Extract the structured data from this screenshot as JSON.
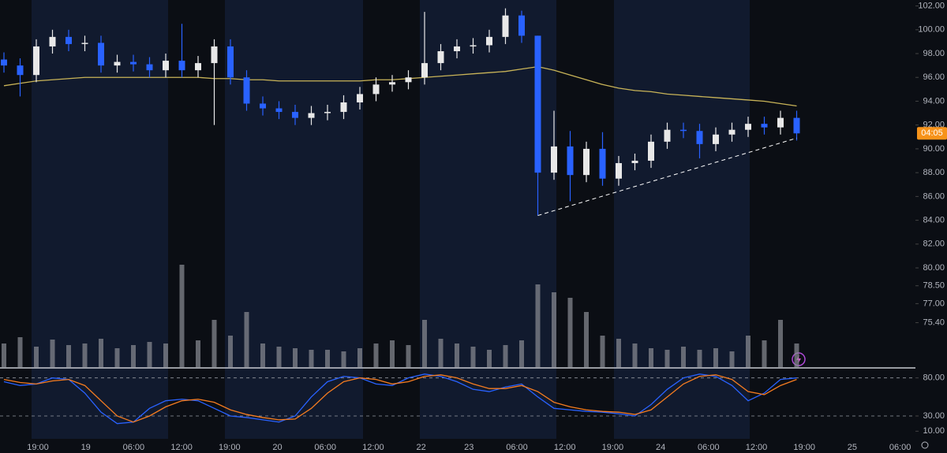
{
  "chart_data": {
    "type": "candlestick",
    "open": [
      97.5,
      97.0,
      96.2,
      98.6,
      99.4,
      98.8,
      98.9,
      97.0,
      97.3,
      97.1,
      96.6,
      97.4,
      96.6,
      97.2,
      98.6,
      96.0,
      93.8,
      93.4,
      93.1,
      92.6,
      93.0,
      93.1,
      93.9,
      94.6,
      95.4,
      95.6,
      96.0,
      97.2,
      98.2,
      98.6,
      98.7,
      99.4,
      101.2,
      99.5,
      88.0,
      90.2,
      87.8,
      90.0,
      87.5,
      88.8,
      89.0,
      90.6,
      91.6,
      91.5,
      90.4,
      91.2,
      91.6,
      92.1,
      91.8,
      92.6
    ],
    "high": [
      98.1,
      97.6,
      99.2,
      100.0,
      100.0,
      99.5,
      99.5,
      97.9,
      97.9,
      97.7,
      98.0,
      100.5,
      97.8,
      99.2,
      99.2,
      96.6,
      94.4,
      94.0,
      93.7,
      93.6,
      93.7,
      94.5,
      95.2,
      96.0,
      96.2,
      96.6,
      101.5,
      98.8,
      99.2,
      99.3,
      100.0,
      101.8,
      101.6,
      99.5,
      93.2,
      91.5,
      90.6,
      91.4,
      89.4,
      89.6,
      91.2,
      92.2,
      92.2,
      92.1,
      91.8,
      92.2,
      92.7,
      92.7,
      93.2,
      93.2
    ],
    "low": [
      96.4,
      94.4,
      95.6,
      98.0,
      98.2,
      98.2,
      96.4,
      96.4,
      96.5,
      96.0,
      96.0,
      96.0,
      96.0,
      92.0,
      95.4,
      93.2,
      92.8,
      92.5,
      92.0,
      92.0,
      92.4,
      92.5,
      93.3,
      94.0,
      94.8,
      95.0,
      95.4,
      96.6,
      97.6,
      98.0,
      98.1,
      98.8,
      98.9,
      84.4,
      87.4,
      85.6,
      87.2,
      86.9,
      86.9,
      88.2,
      88.4,
      90.0,
      90.9,
      89.2,
      89.8,
      90.6,
      91.0,
      91.2,
      91.2,
      90.7
    ],
    "close": [
      97.0,
      96.2,
      98.6,
      99.4,
      98.8,
      98.9,
      97.0,
      97.3,
      97.1,
      96.6,
      97.4,
      96.6,
      97.2,
      98.6,
      96.0,
      93.8,
      93.4,
      93.1,
      92.6,
      93.0,
      93.1,
      93.9,
      94.6,
      95.4,
      95.6,
      96.0,
      97.2,
      98.2,
      98.6,
      98.7,
      99.4,
      101.2,
      99.5,
      88.0,
      90.2,
      87.8,
      90.0,
      87.5,
      88.8,
      89.0,
      90.6,
      91.6,
      91.5,
      90.4,
      91.2,
      91.6,
      92.1,
      91.8,
      92.6,
      91.3
    ],
    "up_color": "#e8e8e8",
    "down_color": "#2962ff",
    "moving_average": {
      "color": "#c9b458",
      "values": [
        95.3,
        95.5,
        95.7,
        95.8,
        95.9,
        96.0,
        96.0,
        96.0,
        96.0,
        96.0,
        96.0,
        96.0,
        96.0,
        95.9,
        95.9,
        95.8,
        95.8,
        95.7,
        95.7,
        95.7,
        95.7,
        95.7,
        95.7,
        95.8,
        95.8,
        95.9,
        96.0,
        96.1,
        96.2,
        96.3,
        96.4,
        96.5,
        96.7,
        96.9,
        96.6,
        96.2,
        95.8,
        95.4,
        95.1,
        94.9,
        94.8,
        94.6,
        94.5,
        94.4,
        94.3,
        94.2,
        94.1,
        94.0,
        93.8,
        93.6
      ]
    },
    "trendline": {
      "from_index": 33,
      "to_index": 49,
      "values": [
        84.4,
        90.9
      ]
    },
    "volume": {
      "color": "#8a8d94",
      "ylim": [
        0,
        140
      ],
      "values": [
        30,
        38,
        26,
        35,
        28,
        30,
        36,
        24,
        28,
        32,
        30,
        130,
        34,
        60,
        40,
        70,
        30,
        26,
        24,
        22,
        22,
        20,
        24,
        30,
        34,
        28,
        60,
        36,
        30,
        26,
        22,
        28,
        34,
        105,
        95,
        88,
        70,
        40,
        36,
        30,
        24,
        22,
        26,
        22,
        24,
        20,
        40,
        34,
        60,
        30
      ]
    },
    "ylim": [
      71.6,
      102.5
    ],
    "yticks": [
      {
        "value": 102,
        "label": "102.00"
      },
      {
        "value": 100,
        "label": "100.00"
      },
      {
        "value": 98,
        "label": "98.00"
      },
      {
        "value": 96,
        "label": "96.00"
      },
      {
        "value": 94,
        "label": "94.00"
      },
      {
        "value": 92,
        "label": "92.00"
      },
      {
        "value": 90,
        "label": "90.00"
      },
      {
        "value": 88,
        "label": "88.00"
      },
      {
        "value": 86,
        "label": "86.00"
      },
      {
        "value": 84,
        "label": "84.00"
      },
      {
        "value": 82,
        "label": "82.00"
      },
      {
        "value": 80,
        "label": "80.00"
      },
      {
        "value": 78.5,
        "label": "78.50"
      },
      {
        "value": 77,
        "label": "77.00"
      },
      {
        "value": 75.4,
        "label": "75.40"
      }
    ],
    "countdown": "04:05",
    "countdown_value": 91.3,
    "oscillator": {
      "ylim": [
        0,
        90
      ],
      "levels": [
        80,
        30
      ],
      "yticks": [
        {
          "value": 80,
          "label": "80.00"
        },
        {
          "value": 30,
          "label": "30.00"
        },
        {
          "value": 10,
          "label": "10.00"
        }
      ],
      "series": [
        {
          "color": "#2962ff",
          "values": [
            75,
            70,
            72,
            80,
            78,
            60,
            35,
            20,
            22,
            40,
            50,
            52,
            50,
            40,
            30,
            28,
            25,
            22,
            30,
            55,
            75,
            82,
            80,
            72,
            70,
            80,
            85,
            82,
            75,
            65,
            62,
            68,
            72,
            55,
            40,
            38,
            36,
            35,
            33,
            30,
            45,
            65,
            80,
            85,
            82,
            70,
            50,
            60,
            78,
            80
          ]
        },
        {
          "color": "#f57c20",
          "values": [
            78,
            74,
            72,
            76,
            78,
            70,
            50,
            30,
            22,
            30,
            42,
            50,
            52,
            48,
            38,
            32,
            28,
            25,
            26,
            40,
            60,
            75,
            80,
            78,
            72,
            75,
            82,
            84,
            80,
            72,
            66,
            66,
            70,
            62,
            48,
            42,
            38,
            36,
            35,
            32,
            38,
            55,
            72,
            82,
            84,
            78,
            62,
            58,
            70,
            78
          ]
        }
      ]
    },
    "time_labels": [
      "19:00",
      "19",
      "06:00",
      "12:00",
      "19:00",
      "20",
      "06:00",
      "12:00",
      "22",
      "23",
      "06:00",
      "12:00",
      "19:00",
      "24",
      "06:00",
      "12:00",
      "19:00",
      "25",
      "06:00"
    ]
  }
}
